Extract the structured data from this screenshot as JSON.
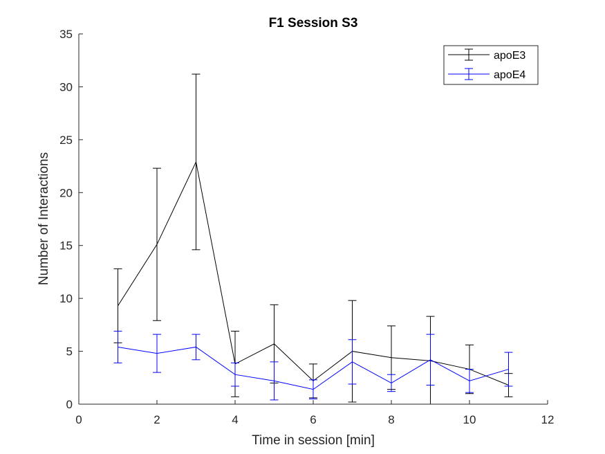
{
  "chart_data": {
    "type": "line",
    "title": "F1 Session S3",
    "xlabel": "Time in session [min]",
    "ylabel": "Number of Interactions",
    "xlim": [
      0,
      12
    ],
    "ylim": [
      0,
      35
    ],
    "x_ticks": [
      "0",
      "2",
      "4",
      "6",
      "8",
      "10",
      "12"
    ],
    "y_ticks": [
      "0",
      "5",
      "10",
      "15",
      "20",
      "25",
      "30",
      "35"
    ],
    "legend_position": "top-right",
    "grid": false,
    "x": [
      1,
      2,
      3,
      4,
      5,
      6,
      7,
      8,
      9,
      10,
      11
    ],
    "series": [
      {
        "name": "apoE3",
        "color": "#000000",
        "values": [
          9.3,
          15.1,
          22.9,
          3.8,
          5.7,
          2.2,
          5.0,
          4.4,
          4.1,
          3.3,
          1.8
        ],
        "error": [
          3.5,
          7.2,
          8.3,
          3.1,
          3.7,
          1.6,
          4.8,
          3.0,
          4.2,
          2.3,
          1.1
        ]
      },
      {
        "name": "apoE4",
        "color": "#0000ff",
        "values": [
          5.4,
          4.8,
          5.4,
          2.8,
          2.2,
          1.4,
          4.0,
          2.0,
          4.2,
          2.2,
          3.3
        ],
        "error": [
          1.5,
          1.8,
          1.2,
          1.1,
          1.8,
          0.9,
          2.1,
          0.8,
          2.4,
          1.1,
          1.6
        ]
      }
    ]
  }
}
